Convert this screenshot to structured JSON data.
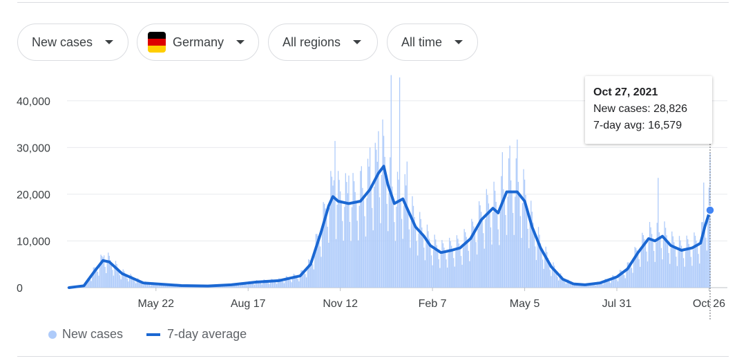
{
  "filters": [
    {
      "label": "New cases"
    },
    {
      "label": "Germany",
      "flag_colors": [
        "#000000",
        "#dd0000",
        "#ffce00"
      ]
    },
    {
      "label": "All regions"
    },
    {
      "label": "All time"
    }
  ],
  "tooltip": {
    "date": "Oct 27, 2021",
    "cases_line": "New cases: 28,826",
    "avg_line": "7-day avg: 16,579"
  },
  "legend": {
    "bars_label": "New cases",
    "line_label": "7-day average"
  },
  "colors": {
    "bars": "#aecbfa",
    "line": "#1a67d2",
    "grid": "#e8eaed"
  },
  "chart_data": {
    "type": "bar",
    "title": "",
    "xlabel": "",
    "ylabel": "",
    "ylim": [
      0,
      45000
    ],
    "yticks": [
      0,
      10000,
      20000,
      30000,
      40000
    ],
    "ytick_labels": [
      "0",
      "10,000",
      "20,000",
      "30,000",
      "40,000"
    ],
    "xlim": [
      "2020-03-01",
      "2021-10-27"
    ],
    "xticks": [
      "2020-05-22",
      "2020-08-17",
      "2020-11-12",
      "2021-02-07",
      "2021-05-05",
      "2021-07-31",
      "2021-10-26"
    ],
    "xtick_labels": [
      "May 22",
      "Aug 17",
      "Nov 12",
      "Feb 7",
      "May 5",
      "Jul 31",
      "Oct 26"
    ],
    "grid": true,
    "legend_position": "bottom-left",
    "series": [
      {
        "name": "7-day average",
        "kind": "line",
        "points": [
          [
            "2020-03-01",
            0
          ],
          [
            "2020-03-15",
            400
          ],
          [
            "2020-03-25",
            3500
          ],
          [
            "2020-04-02",
            5800
          ],
          [
            "2020-04-08",
            5500
          ],
          [
            "2020-04-20",
            3000
          ],
          [
            "2020-05-10",
            1000
          ],
          [
            "2020-06-15",
            450
          ],
          [
            "2020-07-10",
            350
          ],
          [
            "2020-08-01",
            600
          ],
          [
            "2020-08-25",
            1200
          ],
          [
            "2020-09-15",
            1500
          ],
          [
            "2020-10-05",
            2500
          ],
          [
            "2020-10-15",
            5000
          ],
          [
            "2020-10-25",
            12000
          ],
          [
            "2020-11-01",
            17500
          ],
          [
            "2020-11-05",
            19500
          ],
          [
            "2020-11-10",
            18500
          ],
          [
            "2020-11-20",
            18000
          ],
          [
            "2020-12-01",
            18500
          ],
          [
            "2020-12-10",
            21000
          ],
          [
            "2020-12-18",
            24500
          ],
          [
            "2020-12-23",
            26000
          ],
          [
            "2020-12-27",
            22000
          ],
          [
            "2021-01-02",
            18000
          ],
          [
            "2021-01-10",
            19000
          ],
          [
            "2021-01-15",
            16500
          ],
          [
            "2021-01-22",
            13000
          ],
          [
            "2021-01-30",
            11000
          ],
          [
            "2021-02-05",
            9000
          ],
          [
            "2021-02-15",
            7500
          ],
          [
            "2021-02-25",
            8000
          ],
          [
            "2021-03-05",
            8500
          ],
          [
            "2021-03-15",
            10500
          ],
          [
            "2021-03-25",
            14500
          ],
          [
            "2021-04-05",
            17000
          ],
          [
            "2021-04-10",
            16000
          ],
          [
            "2021-04-18",
            20500
          ],
          [
            "2021-04-28",
            20500
          ],
          [
            "2021-05-05",
            18500
          ],
          [
            "2021-05-12",
            13000
          ],
          [
            "2021-05-20",
            8500
          ],
          [
            "2021-05-30",
            4500
          ],
          [
            "2021-06-10",
            1800
          ],
          [
            "2021-06-20",
            800
          ],
          [
            "2021-07-01",
            600
          ],
          [
            "2021-07-15",
            1000
          ],
          [
            "2021-07-31",
            2300
          ],
          [
            "2021-08-10",
            4000
          ],
          [
            "2021-08-20",
            7500
          ],
          [
            "2021-08-30",
            10500
          ],
          [
            "2021-09-05",
            10000
          ],
          [
            "2021-09-12",
            11000
          ],
          [
            "2021-09-20",
            9000
          ],
          [
            "2021-09-30",
            8000
          ],
          [
            "2021-10-10",
            8500
          ],
          [
            "2021-10-18",
            9500
          ],
          [
            "2021-10-22",
            13000
          ],
          [
            "2021-10-27",
            16579
          ]
        ]
      },
      {
        "name": "New cases",
        "kind": "bars",
        "points": [
          [
            "2020-04-01",
            6800
          ],
          [
            "2020-04-03",
            6900
          ],
          [
            "2020-04-08",
            6800
          ],
          [
            "2020-11-06",
            23000
          ],
          [
            "2020-11-07",
            31400
          ],
          [
            "2020-11-20",
            24000
          ],
          [
            "2020-12-02",
            26000
          ],
          [
            "2020-12-10",
            30000
          ],
          [
            "2020-12-15",
            31000
          ],
          [
            "2020-12-18",
            33500
          ],
          [
            "2020-12-22",
            36000
          ],
          [
            "2020-12-30",
            45500
          ],
          [
            "2021-01-07",
            45000
          ],
          [
            "2021-01-14",
            27000
          ],
          [
            "2021-04-14",
            29000
          ],
          [
            "2021-04-21",
            30400
          ],
          [
            "2021-04-28",
            31700
          ],
          [
            "2021-09-08",
            23500
          ],
          [
            "2021-10-21",
            22500
          ],
          [
            "2021-10-27",
            28826
          ]
        ]
      }
    ]
  }
}
